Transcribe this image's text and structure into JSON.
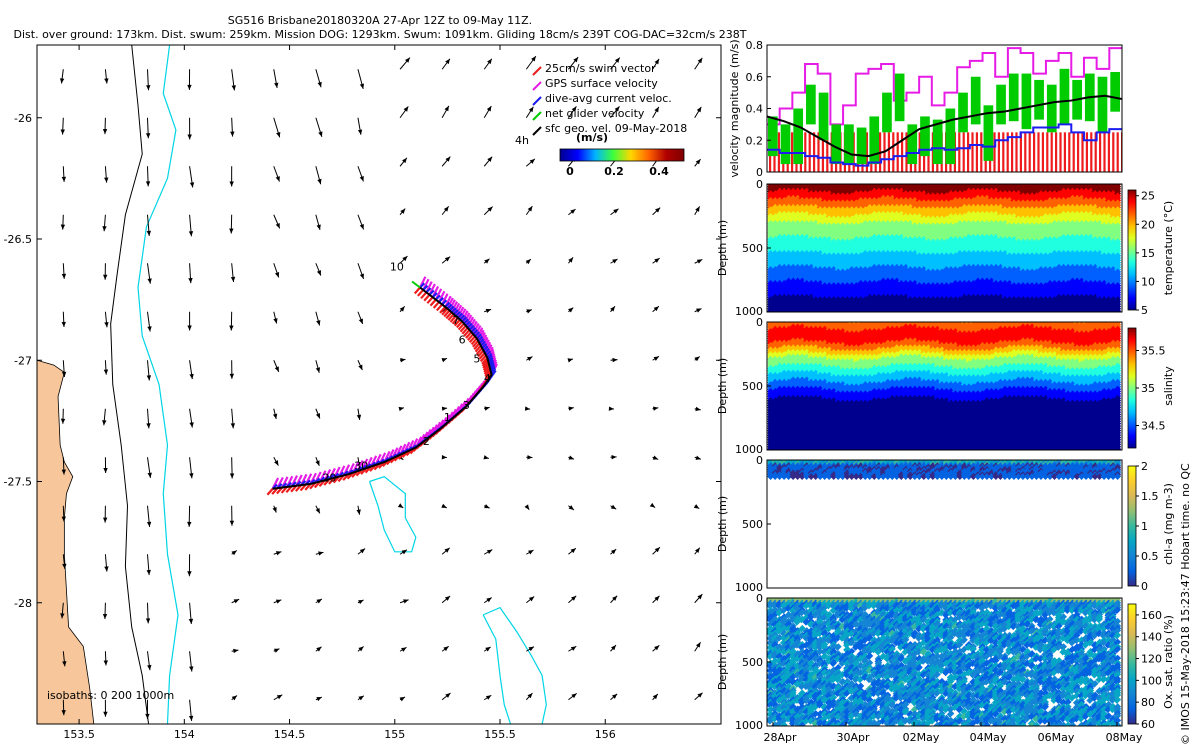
{
  "header": {
    "line1": "SG516 Brisbane20180320A 27-Apr 12Z to 09-May 11Z.",
    "line2": "Dist. over ground: 173km. Dist. swum: 259km. Mission DOG: 1293km. Swum: 1091km. Gliding 18cm/s 239T COG-DAC=32cm/s 238T"
  },
  "credit": "© IMOS 15-May-2018 15:23:47 Hobart time. no QC",
  "colors": {
    "coast": "#f7c79b",
    "isobath200": "#00d5e6",
    "isobath1000": "#000000",
    "swim": "#ee1c1c",
    "gps": "#e61be6",
    "dac": "#1c1cf0",
    "net": "#00cc00",
    "track": "#000000"
  },
  "chart_data": [
    {
      "type": "map",
      "xlim": [
        153.3,
        156.55
      ],
      "ylim": [
        -28.5,
        -25.7
      ],
      "xticks": [
        "153.5",
        "154",
        "154.5",
        "155",
        "155.5",
        "156"
      ],
      "yticks": [
        "-26",
        "-26.5",
        "-27",
        "-27.5",
        "-28"
      ],
      "legend": {
        "items": [
          {
            "key": "swim",
            "label": "25cm/s swim vector"
          },
          {
            "key": "gps",
            "label": "GPS surface velocity"
          },
          {
            "key": "dac",
            "label": "dive-avg current veloc."
          },
          {
            "key": "net",
            "label": "net glider velocity"
          },
          {
            "key": "geo",
            "label": "sfc geo. vel. 09-May-2018"
          }
        ],
        "time_label": "4h",
        "units": "(m/s)",
        "colorbar_ticks": [
          "0",
          "0.2",
          "0.4"
        ]
      },
      "isobaths_label": "isobaths: 0   200   1000m",
      "day_labels": [
        {
          "t": "10",
          "lon": 155.01,
          "lat": -26.63
        },
        {
          "t": "7",
          "lon": 155.29,
          "lat": -26.85
        },
        {
          "t": "6",
          "lon": 155.32,
          "lat": -26.93
        },
        {
          "t": "5",
          "lon": 155.39,
          "lat": -27.01
        },
        {
          "t": "4",
          "lon": 155.44,
          "lat": -27.09
        },
        {
          "t": "3",
          "lon": 155.34,
          "lat": -27.2
        },
        {
          "t": "1",
          "lon": 155.25,
          "lat": -27.25
        },
        {
          "t": "2",
          "lon": 155.15,
          "lat": -27.35
        },
        {
          "t": "30",
          "lon": 154.84,
          "lat": -27.45
        },
        {
          "t": "29",
          "lon": 154.69,
          "lat": -27.5
        }
      ],
      "track": [
        [
          154.42,
          -27.53
        ],
        [
          154.6,
          -27.51
        ],
        [
          154.78,
          -27.47
        ],
        [
          154.95,
          -27.42
        ],
        [
          155.1,
          -27.36
        ],
        [
          155.22,
          -27.28
        ],
        [
          155.34,
          -27.19
        ],
        [
          155.42,
          -27.11
        ],
        [
          155.46,
          -27.06
        ],
        [
          155.44,
          -26.99
        ],
        [
          155.39,
          -26.91
        ],
        [
          155.32,
          -26.84
        ],
        [
          155.24,
          -26.78
        ],
        [
          155.12,
          -26.7
        ]
      ]
    },
    {
      "type": "line",
      "ylabel": "velocity magnitude (m/s)",
      "ylim": [
        0,
        0.8
      ],
      "yticks": [
        "0",
        "0.2",
        "0.4",
        "0.6",
        "0.8"
      ],
      "series": [
        {
          "name": "swim speed",
          "color": "swim",
          "style": "bars",
          "values": [
            0.25
          ]
        },
        {
          "name": "GPS surface velocity",
          "color": "gps",
          "style": "step",
          "values": [
            0.3,
            0.4,
            0.5,
            0.68,
            0.62,
            0.3,
            0.42,
            0.62,
            0.65,
            0.68,
            0.45,
            0.5,
            0.6,
            0.42,
            0.5,
            0.66,
            0.7,
            0.75,
            0.6,
            0.78,
            0.75,
            0.62,
            0.7,
            0.75,
            0.6,
            0.72,
            0.65,
            0.78
          ]
        },
        {
          "name": "net glider velocity",
          "color": "net",
          "style": "bars",
          "values": [
            0.35,
            0.3,
            0.4,
            0.55,
            0.5,
            0.3,
            0.3,
            0.28,
            0.35,
            0.5,
            0.62,
            0.3,
            0.35,
            0.33,
            0.4,
            0.5,
            0.6,
            0.42,
            0.55,
            0.62,
            0.62,
            0.58,
            0.55,
            0.65,
            0.58,
            0.62,
            0.6,
            0.63
          ]
        },
        {
          "name": "dive-avg current",
          "color": "dac",
          "style": "step",
          "values": [
            0.14,
            0.12,
            0.12,
            0.1,
            0.09,
            0.06,
            0.05,
            0.04,
            0.06,
            0.08,
            0.1,
            0.12,
            0.14,
            0.15,
            0.14,
            0.15,
            0.17,
            0.16,
            0.2,
            0.22,
            0.25,
            0.28,
            0.28,
            0.3,
            0.25,
            0.2,
            0.25,
            0.27
          ]
        },
        {
          "name": "geostrophic",
          "color": "track",
          "style": "line",
          "values": [
            0.35,
            0.32,
            0.28,
            0.22,
            0.16,
            0.11,
            0.1,
            0.13,
            0.2,
            0.27,
            0.3,
            0.33,
            0.35,
            0.37,
            0.38,
            0.4,
            0.42,
            0.44,
            0.45,
            0.47,
            0.48,
            0.46
          ]
        }
      ]
    },
    {
      "type": "heatmap",
      "ylabel": "Depth (m)",
      "cbar_label": "temperature (°C)",
      "ylim": [
        1000,
        0
      ],
      "yticks": [
        "0",
        "500",
        "1000"
      ],
      "clim": [
        5,
        26
      ],
      "cbar_ticks": [
        "25",
        "20",
        "15",
        "10",
        "5"
      ]
    },
    {
      "type": "heatmap",
      "ylabel": "Depth (m)",
      "cbar_label": "salinity",
      "ylim": [
        1000,
        0
      ],
      "yticks": [
        "0",
        "500",
        "1000"
      ],
      "clim": [
        34.2,
        35.8
      ],
      "cbar_ticks": [
        "35.5",
        "35",
        "34.5"
      ]
    },
    {
      "type": "heatmap",
      "ylabel": "Depth (m)",
      "cbar_label": "chl-a (mg m-3)",
      "ylim": [
        1000,
        0
      ],
      "yticks": [
        "0",
        "500",
        "1000"
      ],
      "clim": [
        0,
        2
      ],
      "cbar_ticks": [
        "2",
        "1.5",
        "1",
        "0.5",
        "0"
      ]
    },
    {
      "type": "heatmap",
      "ylabel": "Depth (m)",
      "cbar_label": "Ox. sat. ratio (%)",
      "ylim": [
        1000,
        0
      ],
      "yticks": [
        "0",
        "500",
        "1000"
      ],
      "clim": [
        60,
        170
      ],
      "cbar_ticks": [
        "160",
        "140",
        "120",
        "100",
        "80",
        "60"
      ],
      "xticks": [
        "28Apr",
        "30Apr",
        "02May",
        "04May",
        "06May",
        "08May"
      ]
    }
  ]
}
